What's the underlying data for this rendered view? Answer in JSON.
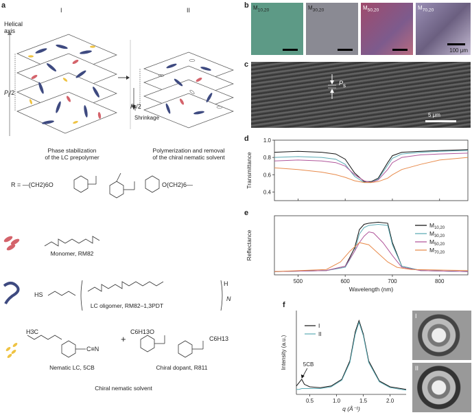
{
  "panel_a": {
    "label": "a",
    "stage_I": "I",
    "stage_II": "II",
    "helical_axis": "Helical\naxis",
    "pitch_I": "P",
    "pitch_I_sub": "i",
    "pitch_II": "P",
    "pitch_II_sub": "f",
    "half": "/2",
    "shrinkage": "Shrinkage",
    "caption_I": "Phase stabilization\nof the LC prepolymer",
    "caption_II": "Polymerization and removal\nof the chiral nematic solvent"
  },
  "chemistry": {
    "r_formula": "R = —(CH2)6O",
    "r_tail": "O(CH2)6—",
    "monomer_label": "Monomer, RM82",
    "oligomer_label": "LC oligomer, RM82–1,3PDT",
    "oligomer_hs": "HS",
    "oligomer_h": "H",
    "oligomer_n": "N",
    "nematic_label": "Nematic LC, 5CB",
    "nematic_h3c": "H3C",
    "nematic_cn": "C≡N",
    "dopant_label": "Chiral dopant, R811",
    "dopant_c6": "C6H13O",
    "dopant_tail": "C6H13",
    "plus": "+",
    "solvent_label": "Chiral nematic solvent"
  },
  "panel_b": {
    "label": "b",
    "images": [
      {
        "label": "M",
        "sub": "10,20",
        "color": "#5d9a86"
      },
      {
        "label": "M",
        "sub": "30,20",
        "color": "#8a8a93"
      },
      {
        "label": "M",
        "sub": "50,20",
        "color": "#a04a6c"
      },
      {
        "label": "M",
        "sub": "70,20",
        "color": "#7d6f8c"
      }
    ],
    "scale": "100 μm"
  },
  "panel_c": {
    "label": "c",
    "pitch": "P",
    "pitch_sub": "s",
    "scale": "5 μm"
  },
  "chart_data": [
    {
      "type": "line",
      "panel": "d",
      "ylabel": "Transmittance",
      "ylim": [
        0.3,
        1.0
      ],
      "yticks": [
        "0.4",
        "0.6",
        "0.8",
        "1.0"
      ],
      "xlim": [
        450,
        860
      ],
      "series": [
        {
          "name": "M10,20",
          "color": "#111111",
          "x": [
            450,
            500,
            550,
            580,
            600,
            620,
            640,
            655,
            670,
            690,
            700,
            720,
            760,
            800,
            860
          ],
          "y": [
            0.86,
            0.87,
            0.86,
            0.84,
            0.78,
            0.62,
            0.52,
            0.52,
            0.56,
            0.74,
            0.82,
            0.86,
            0.87,
            0.88,
            0.89
          ]
        },
        {
          "name": "M30,20",
          "color": "#5aaab4",
          "x": [
            450,
            500,
            550,
            580,
            600,
            620,
            640,
            655,
            670,
            690,
            700,
            720,
            760,
            800,
            860
          ],
          "y": [
            0.8,
            0.81,
            0.8,
            0.78,
            0.72,
            0.58,
            0.51,
            0.51,
            0.55,
            0.71,
            0.79,
            0.84,
            0.86,
            0.87,
            0.88
          ]
        },
        {
          "name": "M50,20",
          "color": "#b0559a",
          "x": [
            450,
            500,
            550,
            580,
            600,
            620,
            640,
            655,
            670,
            690,
            700,
            720,
            760,
            800,
            860
          ],
          "y": [
            0.76,
            0.77,
            0.76,
            0.74,
            0.7,
            0.6,
            0.53,
            0.51,
            0.54,
            0.66,
            0.74,
            0.8,
            0.83,
            0.84,
            0.85
          ]
        },
        {
          "name": "M70,20",
          "color": "#e88a4a",
          "x": [
            450,
            500,
            550,
            580,
            600,
            620,
            640,
            655,
            670,
            690,
            700,
            720,
            760,
            800,
            860
          ],
          "y": [
            0.68,
            0.66,
            0.63,
            0.6,
            0.57,
            0.53,
            0.51,
            0.51,
            0.52,
            0.56,
            0.6,
            0.66,
            0.72,
            0.77,
            0.8
          ]
        }
      ]
    },
    {
      "type": "line",
      "panel": "e",
      "ylabel": "Reflectance",
      "xlabel": "Wavelength (nm)",
      "xlim": [
        450,
        860
      ],
      "xticks": [
        "500",
        "600",
        "700",
        "800"
      ],
      "legend_position": "right",
      "series": [
        {
          "name": "M",
          "sub": "10,20",
          "color": "#111111",
          "x": [
            450,
            560,
            600,
            620,
            630,
            640,
            650,
            670,
            690,
            700,
            720,
            760,
            860
          ],
          "y": [
            0.03,
            0.04,
            0.08,
            0.25,
            0.42,
            0.47,
            0.48,
            0.49,
            0.48,
            0.3,
            0.08,
            0.04,
            0.03
          ]
        },
        {
          "name": "M",
          "sub": "30,20",
          "color": "#5aaab4",
          "x": [
            450,
            560,
            600,
            620,
            630,
            640,
            650,
            670,
            690,
            700,
            720,
            760,
            860
          ],
          "y": [
            0.03,
            0.04,
            0.07,
            0.22,
            0.38,
            0.44,
            0.46,
            0.47,
            0.46,
            0.28,
            0.08,
            0.04,
            0.03
          ]
        },
        {
          "name": "M",
          "sub": "50,20",
          "color": "#b0559a",
          "x": [
            450,
            560,
            600,
            620,
            630,
            640,
            650,
            660,
            680,
            700,
            720,
            760,
            860
          ],
          "y": [
            0.03,
            0.04,
            0.08,
            0.22,
            0.3,
            0.36,
            0.4,
            0.39,
            0.3,
            0.18,
            0.07,
            0.04,
            0.03
          ]
        },
        {
          "name": "M",
          "sub": "70,20",
          "color": "#e88a4a",
          "x": [
            450,
            560,
            590,
            610,
            630,
            650,
            670,
            690,
            710,
            740,
            860
          ],
          "y": [
            0.03,
            0.05,
            0.12,
            0.22,
            0.3,
            0.28,
            0.2,
            0.12,
            0.07,
            0.05,
            0.04
          ]
        }
      ]
    },
    {
      "type": "line",
      "panel": "f",
      "ylabel": "Intensity (a.u.)",
      "xlabel": "q (Å⁻¹)",
      "xlim": [
        0.25,
        2.3
      ],
      "xticks": [
        "0.5",
        "1.0",
        "1.5",
        "2.0"
      ],
      "annotation": "5CB",
      "series": [
        {
          "name": "I",
          "color": "#111111",
          "x": [
            0.25,
            0.3,
            0.35,
            0.4,
            0.5,
            0.7,
            0.9,
            1.1,
            1.25,
            1.35,
            1.42,
            1.5,
            1.6,
            1.8,
            2.0,
            2.3
          ],
          "y": [
            0.1,
            0.14,
            0.18,
            0.12,
            0.09,
            0.08,
            0.1,
            0.18,
            0.4,
            0.75,
            0.88,
            0.72,
            0.4,
            0.16,
            0.09,
            0.06
          ]
        },
        {
          "name": "II",
          "color": "#5aaab4",
          "x": [
            0.25,
            0.3,
            0.35,
            0.4,
            0.5,
            0.7,
            0.9,
            1.1,
            1.25,
            1.35,
            1.42,
            1.5,
            1.6,
            1.8,
            2.0,
            2.3
          ],
          "y": [
            0.06,
            0.06,
            0.07,
            0.07,
            0.07,
            0.07,
            0.09,
            0.17,
            0.38,
            0.72,
            0.86,
            0.7,
            0.38,
            0.15,
            0.08,
            0.05
          ]
        }
      ]
    }
  ],
  "panel_f": {
    "label": "f",
    "pattern_I": "I",
    "pattern_II": "II"
  },
  "panel_labels": {
    "d": "d",
    "e": "e"
  }
}
